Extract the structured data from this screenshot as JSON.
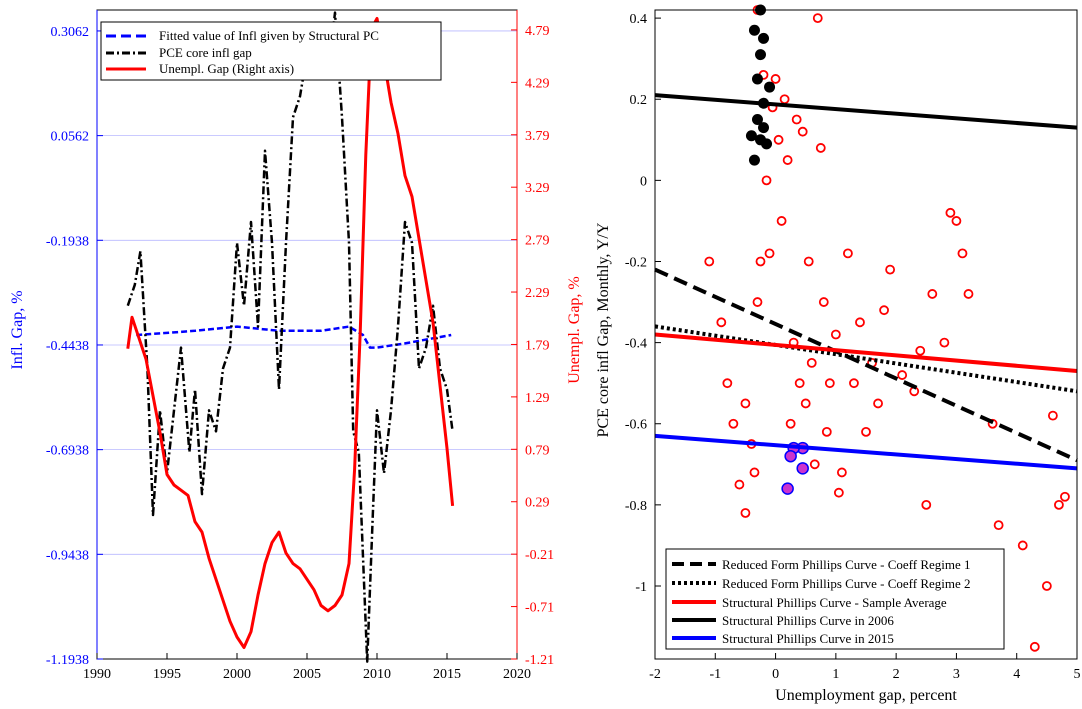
{
  "chart_data": [
    {
      "type": "line",
      "x_ticks": [
        "1990",
        "1995",
        "2000",
        "2005",
        "2010",
        "2015",
        "2020"
      ],
      "xlim": [
        1990,
        2020
      ],
      "ylabel_left": "Infl. Gap, %",
      "ylabel_right": "Unempl. Gap, %",
      "y_left_ticks": [
        "0.3062",
        "0.0562",
        "-0.1938",
        "-0.4438",
        "-0.6938",
        "-0.9438",
        "-1.1938"
      ],
      "y_right_ticks": [
        "4.79",
        "4.29",
        "3.79",
        "3.29",
        "2.79",
        "2.29",
        "1.79",
        "1.29",
        "0.79",
        "0.29",
        "-0.21",
        "-0.71",
        "-1.21"
      ],
      "ylim_left": [
        -1.1938,
        0.3562
      ],
      "ylim_right": [
        -1.21,
        4.98
      ],
      "grid": "horizontal at left ticks",
      "legend_position": "top-left",
      "colors": {
        "blue": "#0000ff",
        "black": "#000000",
        "red": "#ff0000"
      },
      "series": [
        {
          "name": "Fitted value of Infl given by Structural PC",
          "axis": "left",
          "style": "dashed-blue",
          "x": [
            1992.8,
            1995,
            1997,
            2000,
            2003,
            2006,
            2008,
            2009,
            2009.5,
            2010,
            2012,
            2015.3
          ],
          "y": [
            -0.42,
            -0.415,
            -0.41,
            -0.4,
            -0.41,
            -0.41,
            -0.4,
            -0.42,
            -0.45,
            -0.45,
            -0.44,
            -0.42
          ]
        },
        {
          "name": "PCE core infl gap",
          "axis": "left",
          "style": "dashdot-black",
          "x": [
            1992.2,
            1992.7,
            1993.1,
            1993.6,
            1994,
            1994.5,
            1995,
            1995.5,
            1996,
            1996.6,
            1997,
            1997.5,
            1998,
            1998.5,
            1999,
            1999.5,
            2000,
            2000.5,
            2001,
            2001.5,
            2002,
            2002.5,
            2003,
            2003.5,
            2004,
            2004.5,
            2005,
            2005.5,
            2006,
            2006.5,
            2007,
            2007.5,
            2008,
            2008.3,
            2008.7,
            2009,
            2009.3,
            2009.7,
            2010,
            2010.5,
            2011,
            2011.5,
            2012,
            2012.5,
            2013,
            2013.5,
            2014,
            2014.5,
            2015,
            2015.4
          ],
          "y": [
            -0.35,
            -0.3,
            -0.22,
            -0.5,
            -0.85,
            -0.6,
            -0.75,
            -0.6,
            -0.45,
            -0.7,
            -0.55,
            -0.8,
            -0.6,
            -0.65,
            -0.5,
            -0.45,
            -0.2,
            -0.35,
            -0.15,
            -0.4,
            0.02,
            -0.2,
            -0.55,
            -0.2,
            0.1,
            0.15,
            0.25,
            0.2,
            0.3,
            0.2,
            0.35,
            0.1,
            -0.2,
            -0.65,
            -0.7,
            -0.95,
            -1.2,
            -0.85,
            -0.6,
            -0.75,
            -0.6,
            -0.4,
            -0.15,
            -0.2,
            -0.5,
            -0.45,
            -0.35,
            -0.5,
            -0.55,
            -0.65
          ]
        },
        {
          "name": "Unempl. Gap (Right axis)",
          "axis": "right",
          "style": "solid-red",
          "x": [
            1992.2,
            1992.5,
            1993,
            1993.5,
            1994,
            1994.5,
            1995,
            1995.5,
            1996,
            1996.5,
            1997,
            1997.5,
            1998,
            1998.5,
            1999,
            1999.5,
            2000,
            2000.5,
            2001,
            2001.5,
            2002,
            2002.5,
            2003,
            2003.5,
            2004,
            2004.5,
            2005,
            2005.5,
            2006,
            2006.5,
            2007,
            2007.5,
            2008,
            2008.4,
            2008.8,
            2009.2,
            2009.6,
            2010,
            2010.5,
            2011,
            2011.5,
            2012,
            2012.5,
            2013,
            2013.5,
            2014,
            2014.5,
            2015,
            2015.4
          ],
          "y": [
            1.75,
            2.05,
            1.85,
            1.65,
            1.3,
            0.95,
            0.55,
            0.45,
            0.4,
            0.35,
            0.1,
            0.0,
            -0.25,
            -0.45,
            -0.65,
            -0.85,
            -1.0,
            -1.1,
            -0.95,
            -0.6,
            -0.3,
            -0.1,
            0.0,
            -0.2,
            -0.3,
            -0.35,
            -0.45,
            -0.55,
            -0.7,
            -0.75,
            -0.7,
            -0.6,
            -0.3,
            0.6,
            1.9,
            3.6,
            4.8,
            4.9,
            4.5,
            4.1,
            3.8,
            3.4,
            3.2,
            2.8,
            2.4,
            2.0,
            1.4,
            0.8,
            0.25
          ]
        }
      ]
    },
    {
      "type": "scatter",
      "xlabel": "Unemployment gap, percent",
      "ylabel": "PCE core infl Gap, Monthly, Y/Y",
      "x_ticks": [
        "-2",
        "-1",
        "0",
        "1",
        "2",
        "3",
        "4",
        "5"
      ],
      "y_ticks": [
        "0.4",
        "0.2",
        "0",
        "-0.2",
        "-0.4",
        "-0.6",
        "-0.8",
        "-1"
      ],
      "xlim": [
        -2,
        5
      ],
      "ylim": [
        -1.18,
        0.42
      ],
      "legend_position": "bottom-center",
      "scatter_points": {
        "red_hollow": [
          [
            -1.1,
            -0.2
          ],
          [
            -0.9,
            -0.35
          ],
          [
            -0.8,
            -0.5
          ],
          [
            -0.7,
            -0.6
          ],
          [
            -0.6,
            -0.75
          ],
          [
            -0.5,
            -0.82
          ],
          [
            -0.5,
            -0.55
          ],
          [
            -0.4,
            -0.65
          ],
          [
            -0.35,
            -0.72
          ],
          [
            -0.3,
            -0.3
          ],
          [
            -0.3,
            0.42
          ],
          [
            -0.25,
            -0.2
          ],
          [
            -0.2,
            0.26
          ],
          [
            -0.15,
            0.0
          ],
          [
            -0.1,
            -0.18
          ],
          [
            -0.05,
            0.18
          ],
          [
            0.0,
            0.25
          ],
          [
            0.05,
            0.1
          ],
          [
            0.1,
            -0.1
          ],
          [
            0.15,
            0.2
          ],
          [
            0.2,
            0.05
          ],
          [
            0.25,
            -0.6
          ],
          [
            0.3,
            -0.4
          ],
          [
            0.35,
            0.15
          ],
          [
            0.4,
            -0.5
          ],
          [
            0.45,
            0.12
          ],
          [
            0.5,
            -0.55
          ],
          [
            0.55,
            -0.2
          ],
          [
            0.6,
            -0.45
          ],
          [
            0.65,
            -0.7
          ],
          [
            0.7,
            0.4
          ],
          [
            0.75,
            0.08
          ],
          [
            0.8,
            -0.3
          ],
          [
            0.85,
            -0.62
          ],
          [
            0.9,
            -0.5
          ],
          [
            1.0,
            -0.38
          ],
          [
            1.05,
            -0.77
          ],
          [
            1.1,
            -0.72
          ],
          [
            1.2,
            -0.18
          ],
          [
            1.3,
            -0.5
          ],
          [
            1.4,
            -0.35
          ],
          [
            1.5,
            -0.62
          ],
          [
            1.6,
            -0.45
          ],
          [
            1.7,
            -0.55
          ],
          [
            1.8,
            -0.32
          ],
          [
            1.9,
            -0.22
          ],
          [
            2.1,
            -0.48
          ],
          [
            2.3,
            -0.52
          ],
          [
            2.4,
            -0.42
          ],
          [
            2.5,
            -0.8
          ],
          [
            2.6,
            -0.28
          ],
          [
            2.8,
            -0.4
          ],
          [
            2.9,
            -0.08
          ],
          [
            3.0,
            -0.1
          ],
          [
            3.1,
            -0.18
          ],
          [
            3.2,
            -0.28
          ],
          [
            3.6,
            -0.6
          ],
          [
            3.7,
            -0.85
          ],
          [
            4.1,
            -0.9
          ],
          [
            4.3,
            -1.15
          ],
          [
            4.5,
            -1.0
          ],
          [
            4.6,
            -0.58
          ],
          [
            4.7,
            -0.8
          ],
          [
            4.8,
            -0.78
          ]
        ],
        "black_filled": [
          [
            -0.3,
            0.25
          ],
          [
            -0.35,
            0.37
          ],
          [
            -0.25,
            0.42
          ],
          [
            -0.2,
            0.35
          ],
          [
            -0.25,
            0.31
          ],
          [
            -0.3,
            0.15
          ],
          [
            -0.2,
            0.13
          ],
          [
            -0.25,
            0.1
          ],
          [
            -0.1,
            0.23
          ],
          [
            -0.35,
            0.05
          ],
          [
            -0.15,
            0.09
          ],
          [
            -0.4,
            0.11
          ],
          [
            -0.2,
            0.19
          ]
        ],
        "blue_purple_filled": [
          [
            0.45,
            -0.66
          ],
          [
            0.3,
            -0.66
          ],
          [
            0.45,
            -0.71
          ],
          [
            0.25,
            -0.68
          ],
          [
            0.2,
            -0.76
          ]
        ]
      },
      "series": [
        {
          "name": "Reduced Form Phillips Curve - Coeff Regime 1",
          "style": "dashed-black",
          "x": [
            -2,
            5
          ],
          "y": [
            -0.22,
            -0.69
          ]
        },
        {
          "name": "Reduced Form Phillips Curve - Coeff Regime 2",
          "style": "dotted-black",
          "x": [
            -2,
            5
          ],
          "y": [
            -0.36,
            -0.52
          ]
        },
        {
          "name": "Structural Phillips Curve - Sample Average",
          "style": "solid-red",
          "x": [
            -2,
            5
          ],
          "y": [
            -0.38,
            -0.47
          ]
        },
        {
          "name": "Structural Phillips Curve in 2006",
          "style": "solid-black",
          "x": [
            -2,
            5
          ],
          "y": [
            0.21,
            0.13
          ]
        },
        {
          "name": "Structural Phillips Curve in 2015",
          "style": "solid-blue",
          "x": [
            -2,
            5
          ],
          "y": [
            -0.63,
            -0.71
          ]
        }
      ]
    }
  ]
}
